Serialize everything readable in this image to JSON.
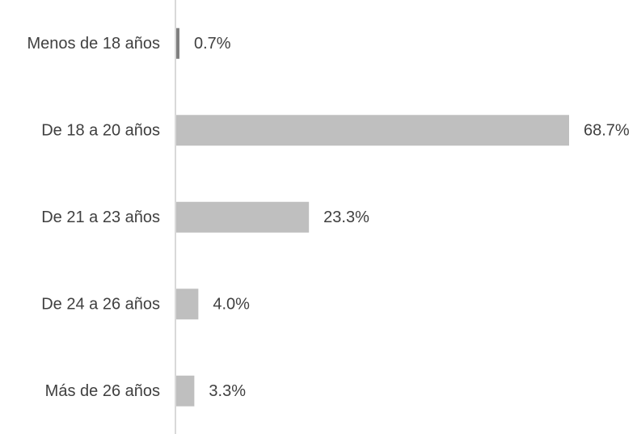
{
  "chart_data": {
    "type": "bar",
    "orientation": "horizontal",
    "categories": [
      "Menos de 18 años",
      "De 18 a 20 años",
      "De 21 a 23 años",
      "De 24 a 26 años",
      "Más de 26 años"
    ],
    "values": [
      0.7,
      68.7,
      23.3,
      4.0,
      3.3
    ],
    "value_labels": [
      "0.7%",
      "68.7%",
      "23.3%",
      "4.0%",
      "3.3%"
    ],
    "title": "",
    "xlabel": "",
    "ylabel": "",
    "xlim": [
      0,
      68.7
    ],
    "grid": false,
    "legend": "none",
    "colors": {
      "bar": "#bfbfbf",
      "first_bar": "#7f7f7f",
      "axis": "#d9d9d9",
      "text": "#404040"
    }
  }
}
